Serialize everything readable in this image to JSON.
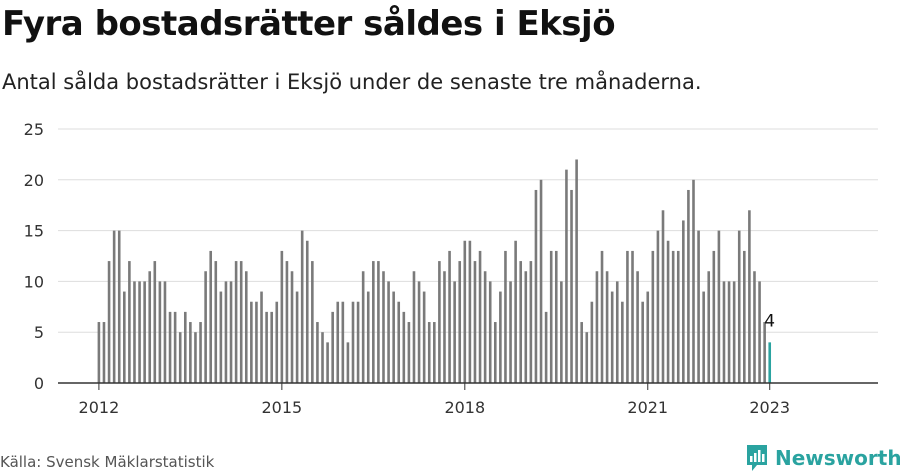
{
  "title": "Fyra bostadsrätter såldes i Eksjö",
  "subtitle": "Antal sålda bostadsrätter i Eksjö under de senaste tre månaderna.",
  "source": "Källa: Svensk Mäklarstatistik",
  "brand": {
    "name": "Newsworthy",
    "logo_icon": "newsworthy-logo-icon",
    "color": "#2aa3a0"
  },
  "colors": {
    "bar": "#7a7a7a",
    "highlight": "#2aa3a0",
    "grid": "#dddddd",
    "axis": "#333333"
  },
  "chart_data": {
    "type": "bar",
    "title": "",
    "xlabel": "",
    "ylabel": "",
    "ylim": [
      0,
      25
    ],
    "yticks": [
      0,
      5,
      10,
      15,
      20,
      25
    ],
    "xticks": [
      {
        "label": "2012",
        "index": 0
      },
      {
        "label": "2015",
        "index": 36
      },
      {
        "label": "2018",
        "index": 72
      },
      {
        "label": "2021",
        "index": 108
      },
      {
        "label": "2023",
        "index": 132
      }
    ],
    "grid": true,
    "annotation": {
      "text": "4",
      "index": 132
    },
    "start": "2012-01",
    "values": [
      6,
      6,
      12,
      15,
      15,
      9,
      12,
      10,
      10,
      10,
      11,
      12,
      10,
      10,
      7,
      7,
      5,
      7,
      6,
      5,
      6,
      11,
      13,
      12,
      9,
      10,
      10,
      12,
      12,
      11,
      8,
      8,
      9,
      7,
      7,
      8,
      13,
      12,
      11,
      9,
      15,
      14,
      12,
      6,
      5,
      4,
      7,
      8,
      8,
      4,
      8,
      8,
      11,
      9,
      12,
      12,
      11,
      10,
      9,
      8,
      7,
      6,
      11,
      10,
      9,
      6,
      6,
      12,
      11,
      13,
      10,
      12,
      14,
      14,
      12,
      13,
      11,
      10,
      6,
      9,
      13,
      10,
      14,
      12,
      11,
      12,
      19,
      20,
      7,
      13,
      13,
      10,
      21,
      19,
      22,
      6,
      5,
      8,
      11,
      13,
      11,
      9,
      10,
      8,
      13,
      13,
      11,
      8,
      9,
      13,
      15,
      17,
      14,
      13,
      13,
      16,
      19,
      20,
      15,
      9,
      11,
      13,
      15,
      10,
      10,
      10,
      15,
      13,
      17,
      11,
      10,
      6,
      4
    ]
  }
}
